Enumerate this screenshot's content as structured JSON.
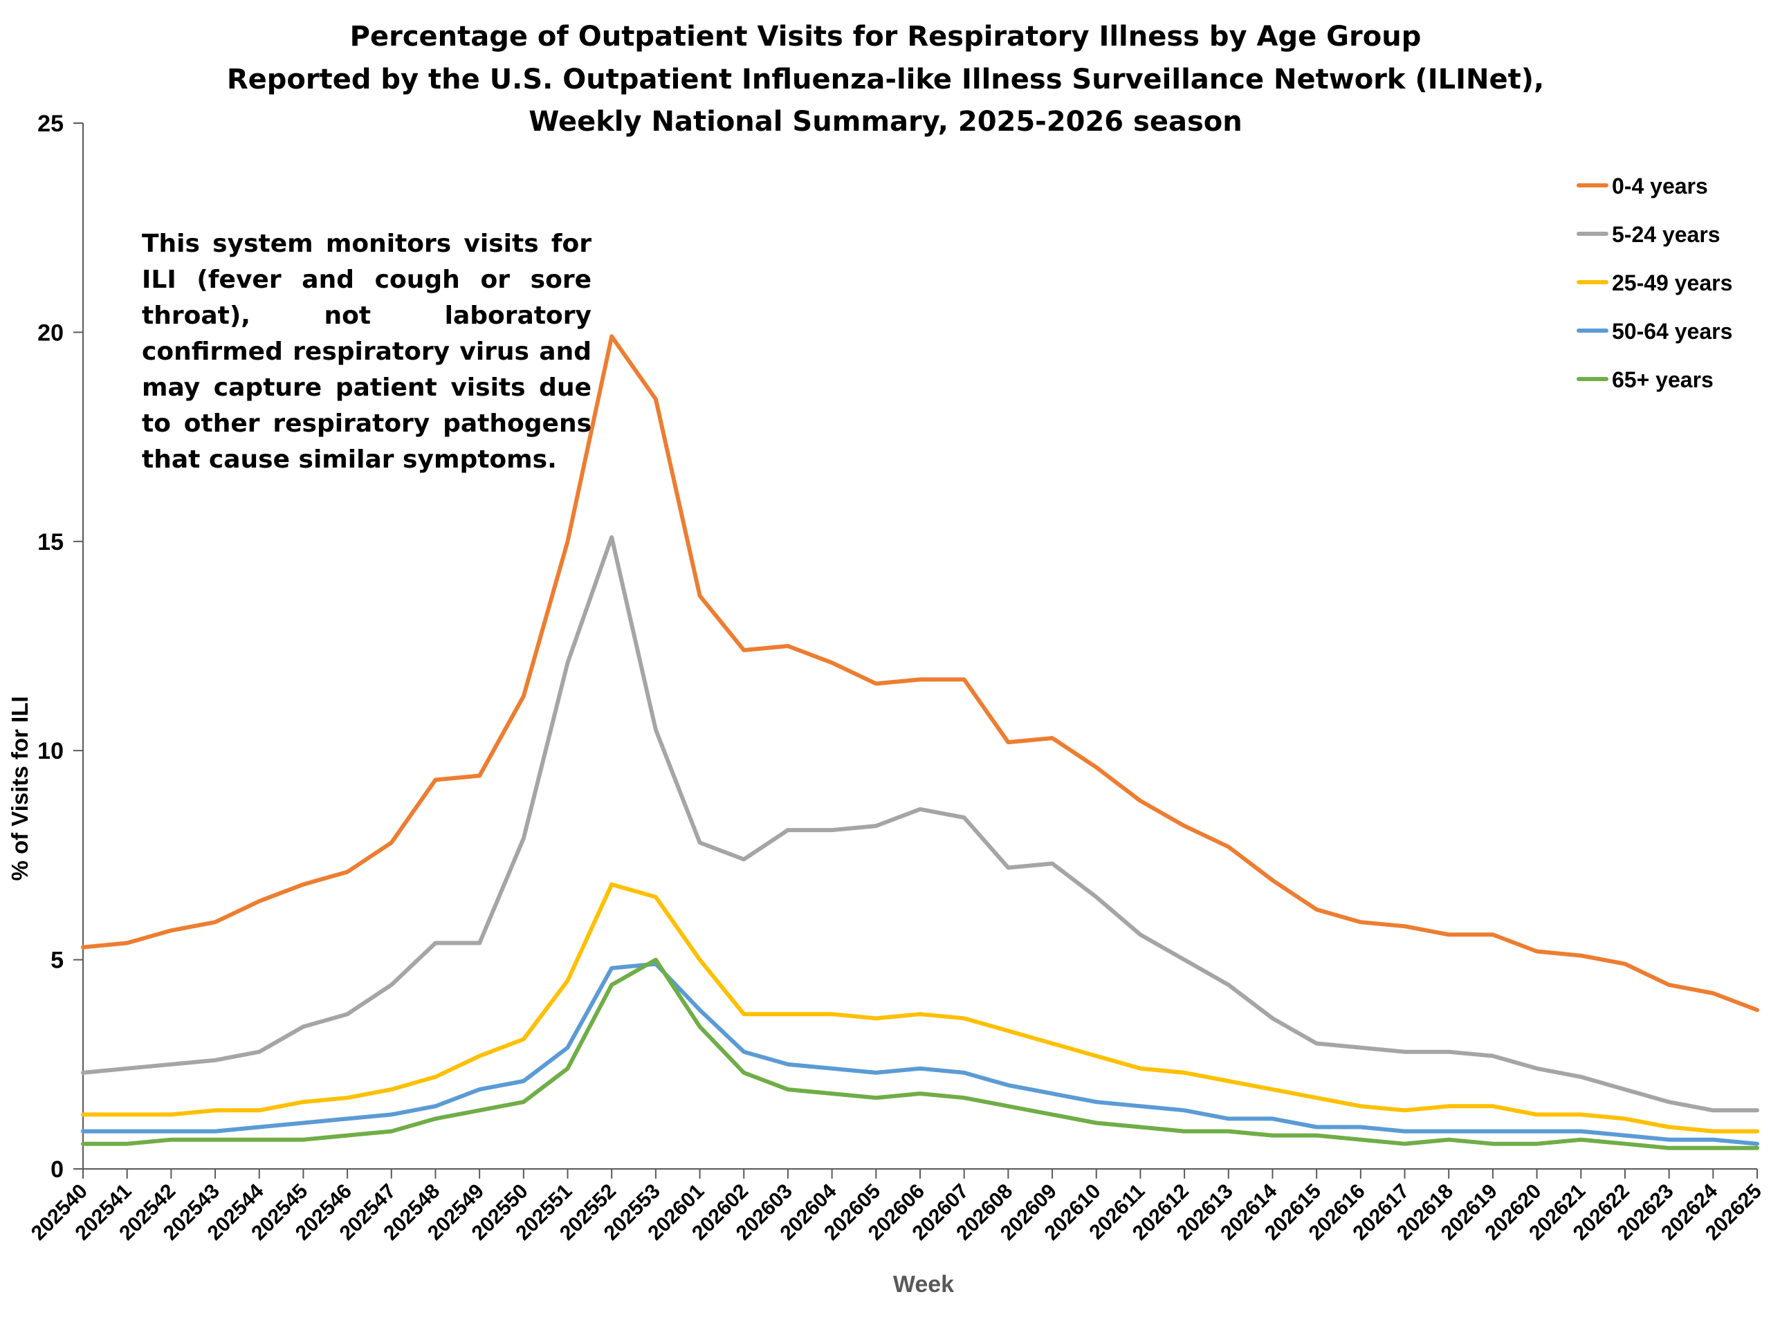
{
  "chart_data": {
    "type": "line",
    "title_lines": [
      "Percentage of Outpatient Visits for Respiratory Illness by Age Group",
      "Reported by the U.S. Outpatient Influenza-like Illness Surveillance Network (ILINet),",
      "Weekly National Summary, 2025-2026 season"
    ],
    "xlabel": "Week",
    "ylabel": "% of Visits for ILI",
    "ylim": [
      0,
      25
    ],
    "yticks": [
      0,
      5,
      10,
      15,
      20,
      25
    ],
    "grid": false,
    "legend_position": "top-right",
    "annotation": "This system monitors visits for ILI (fever and cough or sore throat), not laboratory confirmed respiratory virus and may capture patient visits due to other respiratory pathogens that cause similar symptoms.",
    "categories": [
      "202540",
      "202541",
      "202542",
      "202543",
      "202544",
      "202545",
      "202546",
      "202547",
      "202548",
      "202549",
      "202550",
      "202551",
      "202552",
      "202553",
      "202601",
      "202602",
      "202603",
      "202604",
      "202605",
      "202606",
      "202607",
      "202608",
      "202609",
      "202610",
      "202611",
      "202612",
      "202613",
      "202614",
      "202615",
      "202616",
      "202617",
      "202618",
      "202619",
      "202620",
      "202621",
      "202622",
      "202623",
      "202624",
      "202625"
    ],
    "series": [
      {
        "name": "0-4 years",
        "color": "#ED7D31",
        "values": [
          5.3,
          5.4,
          5.7,
          5.9,
          6.4,
          6.8,
          7.1,
          7.8,
          9.3,
          9.4,
          11.3,
          15.0,
          19.9,
          18.4,
          13.7,
          12.4,
          12.5,
          12.1,
          11.6,
          11.7,
          11.7,
          10.2,
          10.3,
          9.6,
          8.8,
          8.2,
          7.7,
          6.9,
          6.2,
          5.9,
          5.8,
          5.6,
          5.6,
          5.2,
          5.1,
          4.9,
          4.4,
          4.2,
          3.8
        ]
      },
      {
        "name": "5-24 years",
        "color": "#A5A5A5",
        "values": [
          2.3,
          2.4,
          2.5,
          2.6,
          2.8,
          3.4,
          3.7,
          4.4,
          5.4,
          5.4,
          7.9,
          12.1,
          15.1,
          10.5,
          7.8,
          7.4,
          8.1,
          8.1,
          8.2,
          8.6,
          8.4,
          7.2,
          7.3,
          6.5,
          5.6,
          5.0,
          4.4,
          3.6,
          3.0,
          2.9,
          2.8,
          2.8,
          2.7,
          2.4,
          2.2,
          1.9,
          1.6,
          1.4,
          1.4
        ]
      },
      {
        "name": "25-49 years",
        "color": "#FFC000",
        "values": [
          1.3,
          1.3,
          1.3,
          1.4,
          1.4,
          1.6,
          1.7,
          1.9,
          2.2,
          2.7,
          3.1,
          4.5,
          6.8,
          6.5,
          5.0,
          3.7,
          3.7,
          3.7,
          3.6,
          3.7,
          3.6,
          3.3,
          3.0,
          2.7,
          2.4,
          2.3,
          2.1,
          1.9,
          1.7,
          1.5,
          1.4,
          1.5,
          1.5,
          1.3,
          1.3,
          1.2,
          1.0,
          0.9,
          0.9
        ]
      },
      {
        "name": "50-64 years",
        "color": "#5B9BD5",
        "values": [
          0.9,
          0.9,
          0.9,
          0.9,
          1.0,
          1.1,
          1.2,
          1.3,
          1.5,
          1.9,
          2.1,
          2.9,
          4.8,
          4.9,
          3.8,
          2.8,
          2.5,
          2.4,
          2.3,
          2.4,
          2.3,
          2.0,
          1.8,
          1.6,
          1.5,
          1.4,
          1.2,
          1.2,
          1.0,
          1.0,
          0.9,
          0.9,
          0.9,
          0.9,
          0.9,
          0.8,
          0.7,
          0.7,
          0.6
        ]
      },
      {
        "name": "65+ years",
        "color": "#70AD47",
        "values": [
          0.6,
          0.6,
          0.7,
          0.7,
          0.7,
          0.7,
          0.8,
          0.9,
          1.2,
          1.4,
          1.6,
          2.4,
          4.4,
          5.0,
          3.4,
          2.3,
          1.9,
          1.8,
          1.7,
          1.8,
          1.7,
          1.5,
          1.3,
          1.1,
          1.0,
          0.9,
          0.9,
          0.8,
          0.8,
          0.7,
          0.6,
          0.7,
          0.6,
          0.6,
          0.7,
          0.6,
          0.5,
          0.5,
          0.5
        ]
      }
    ]
  }
}
